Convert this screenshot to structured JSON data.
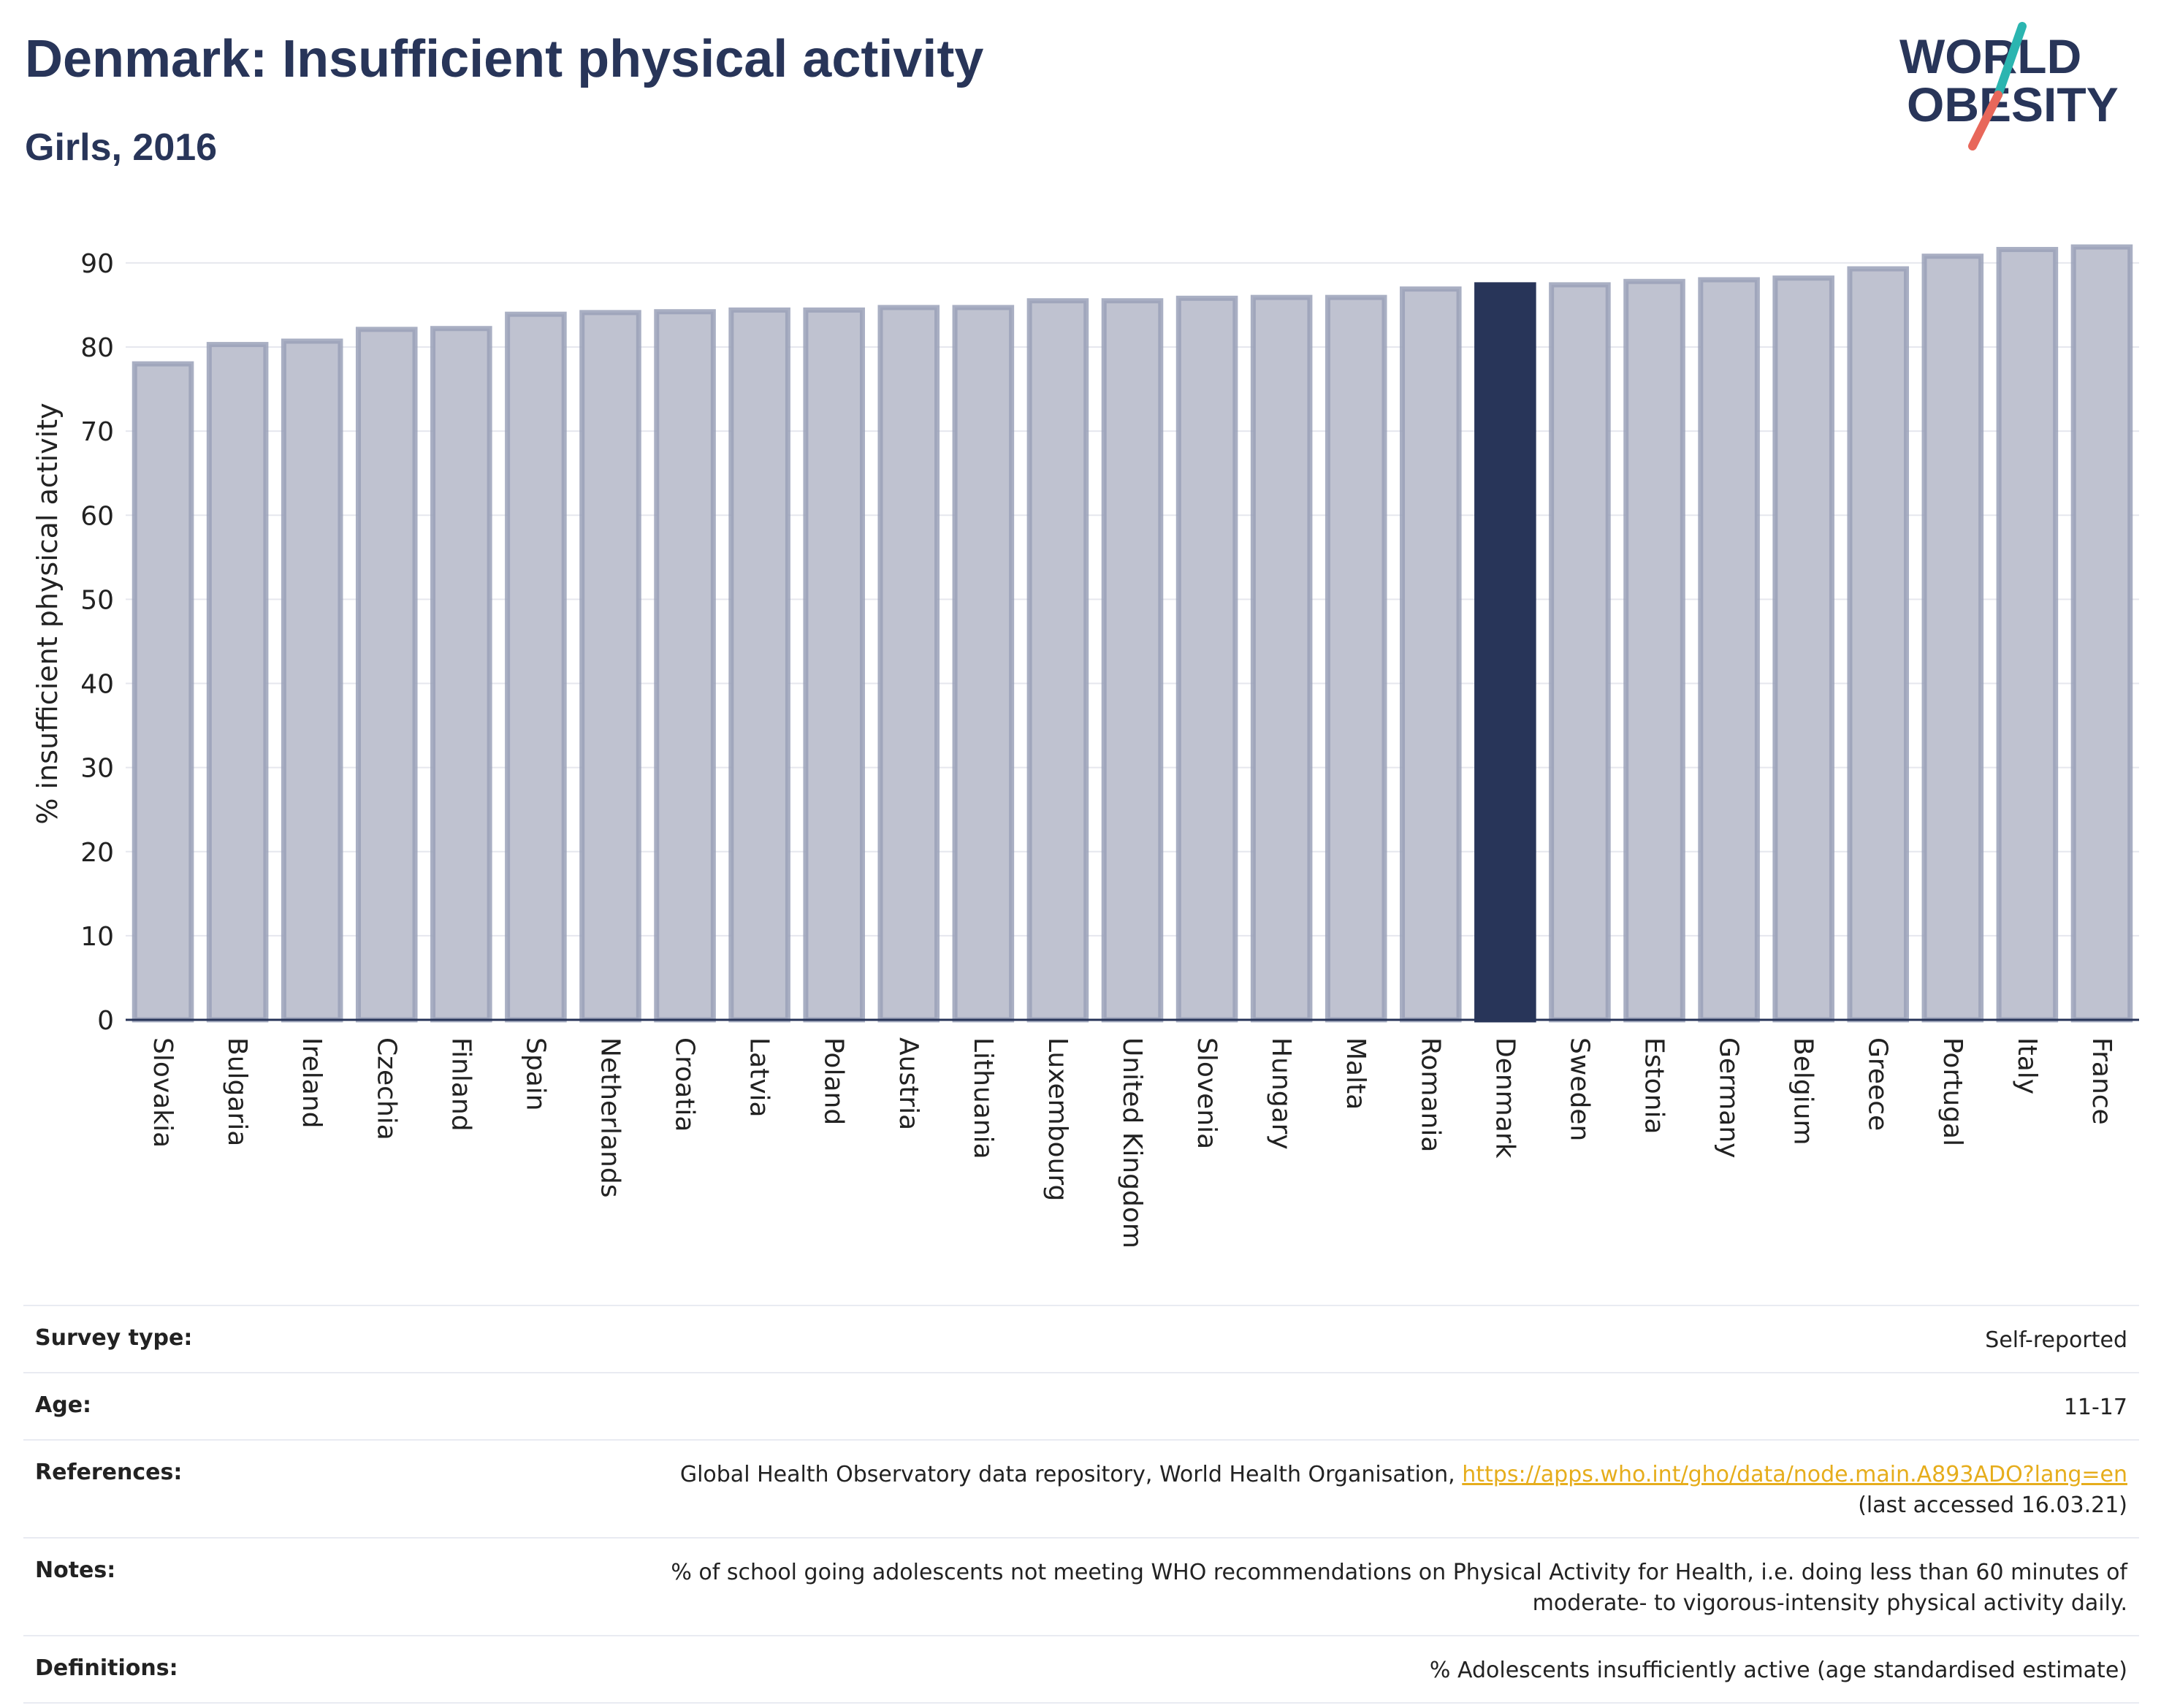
{
  "header": {
    "title": "Denmark: Insufficient physical activity",
    "subtitle": "Girls, 2016"
  },
  "logo": {
    "line1": "WORLD",
    "line2": "OBESITY"
  },
  "chart_data": {
    "type": "bar",
    "ylabel": "% insufficient physical activity",
    "xlabel": "",
    "ylim": [
      0,
      90
    ],
    "yticks": [
      0,
      10,
      20,
      30,
      40,
      50,
      60,
      70,
      80,
      90
    ],
    "grid": true,
    "highlight": "Denmark",
    "colors": {
      "bar": "#bfc2d0",
      "bar_edge": "#9aa1b8",
      "highlight": "#283559",
      "axis": "#283559",
      "grid": "#e6e7ee"
    },
    "categories": [
      "Slovakia",
      "Bulgaria",
      "Ireland",
      "Czechia",
      "Finland",
      "Spain",
      "Netherlands",
      "Croatia",
      "Latvia",
      "Poland",
      "Austria",
      "Lithuania",
      "Luxembourg",
      "United Kingdom",
      "Slovenia",
      "Hungary",
      "Malta",
      "Romania",
      "Denmark",
      "Sweden",
      "Estonia",
      "Germany",
      "Belgium",
      "Greece",
      "Portugal",
      "Italy",
      "France"
    ],
    "values": [
      78.0,
      80.3,
      80.7,
      82.1,
      82.2,
      83.9,
      84.1,
      84.2,
      84.4,
      84.4,
      84.7,
      84.7,
      85.5,
      85.5,
      85.8,
      85.9,
      85.9,
      86.9,
      87.4,
      87.4,
      87.8,
      88.0,
      88.2,
      89.3,
      90.8,
      91.6,
      91.9
    ]
  },
  "info": {
    "survey": {
      "label": "Survey type:",
      "value": "Self-reported"
    },
    "age": {
      "label": "Age:",
      "value": "11-17"
    },
    "references": {
      "label": "References:",
      "text": "Global Health Observatory data repository, World Health Organisation,",
      "link": "https://apps.who.int/gho/data/node.main.A893ADO?lang=en",
      "accessed": "(last accessed 16.03.21)"
    },
    "notes": {
      "label": "Notes:",
      "line1": "% of school going adolescents not meeting WHO recommendations on Physical Activity for Health, i.e. doing less than 60 minutes of",
      "line2": "moderate- to vigorous-intensity physical activity daily."
    },
    "definitions": {
      "label": "Definitions:",
      "value": "% Adolescents insufficiently active (age standardised estimate)"
    }
  }
}
